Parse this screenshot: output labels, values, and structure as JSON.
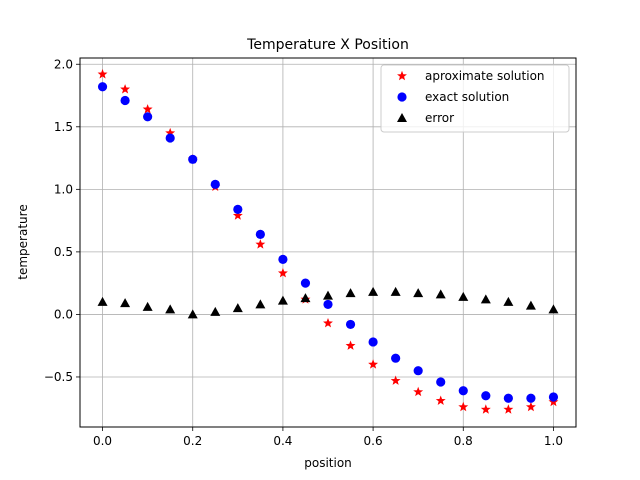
{
  "chart_data": {
    "type": "scatter",
    "title": "Temperature X Position",
    "xlabel": "position",
    "ylabel": "temperature",
    "xlim": [
      -0.05,
      1.05
    ],
    "ylim": [
      -0.9,
      2.05
    ],
    "xticks": [
      0.0,
      0.2,
      0.4,
      0.6,
      0.8,
      1.0
    ],
    "xtick_labels": [
      "0.0",
      "0.2",
      "0.4",
      "0.6",
      "0.8",
      "1.0"
    ],
    "yticks": [
      -0.5,
      0.0,
      0.5,
      1.0,
      1.5,
      2.0
    ],
    "ytick_labels": [
      "−0.5",
      "0.0",
      "0.5",
      "1.0",
      "1.5",
      "2.0"
    ],
    "grid": true,
    "legend_position": "top-right",
    "x": [
      0.0,
      0.05,
      0.1,
      0.15,
      0.2,
      0.25,
      0.3,
      0.35,
      0.4,
      0.45,
      0.5,
      0.55,
      0.6,
      0.65,
      0.7,
      0.75,
      0.8,
      0.85,
      0.9,
      0.95,
      1.0
    ],
    "series": [
      {
        "name": "aproximate solution",
        "marker": "star",
        "color": "#ff0000",
        "values": [
          1.92,
          1.8,
          1.64,
          1.45,
          1.24,
          1.02,
          0.79,
          0.56,
          0.33,
          0.12,
          -0.07,
          -0.25,
          -0.4,
          -0.53,
          -0.62,
          -0.69,
          -0.74,
          -0.76,
          -0.76,
          -0.74,
          -0.7
        ]
      },
      {
        "name": "exact solution",
        "marker": "circle",
        "color": "#0000ff",
        "values": [
          1.82,
          1.71,
          1.58,
          1.41,
          1.24,
          1.04,
          0.84,
          0.64,
          0.44,
          0.25,
          0.08,
          -0.08,
          -0.22,
          -0.35,
          -0.45,
          -0.54,
          -0.61,
          -0.65,
          -0.67,
          -0.67,
          -0.66
        ]
      },
      {
        "name": "error",
        "marker": "triangle",
        "color": "#000000",
        "values": [
          0.1,
          0.09,
          0.06,
          0.04,
          0.0,
          0.02,
          0.05,
          0.08,
          0.11,
          0.13,
          0.15,
          0.17,
          0.18,
          0.18,
          0.17,
          0.16,
          0.14,
          0.12,
          0.1,
          0.07,
          0.04
        ]
      }
    ]
  }
}
